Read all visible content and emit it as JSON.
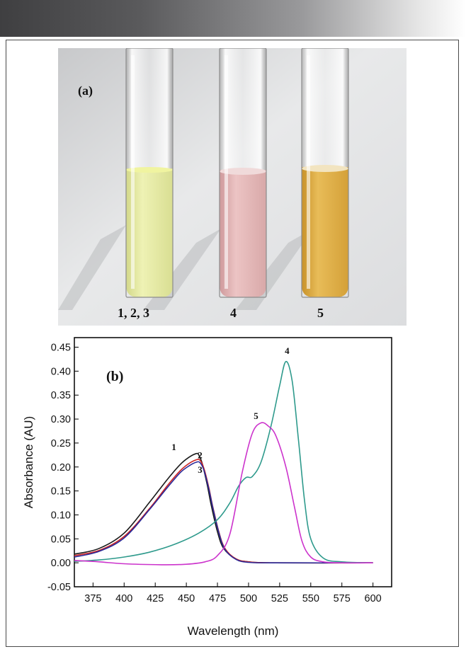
{
  "figure": {
    "photo_panel_label": "(a)",
    "tube_labels": [
      "1, 2, 3",
      "4",
      "5"
    ]
  },
  "colors": {
    "series_1": "#1a1a1a",
    "series_2": "#cc2222",
    "series_3": "#2a2a9a",
    "series_4": "#2e9a8c",
    "series_5": "#cc33cc",
    "tube_yellow": "#e6ec9e",
    "tube_pink": "#e6b3b3",
    "tube_amber": "#dcaa3c"
  },
  "chart_data": {
    "type": "line",
    "panel_label": "(b)",
    "xlabel": "Wavelength (nm)",
    "ylabel": "Absorbance (AU)",
    "xlim": [
      360,
      615
    ],
    "ylim": [
      -0.05,
      0.47
    ],
    "xticks": [
      "375",
      "400",
      "425",
      "450",
      "475",
      "500",
      "525",
      "550",
      "575",
      "600"
    ],
    "yticks": [
      "-0.05",
      "0.00",
      "0.05",
      "0.10",
      "0.15",
      "0.20",
      "0.25",
      "0.30",
      "0.35",
      "0.40",
      "0.45"
    ],
    "grid": false,
    "series": [
      {
        "name": "1",
        "color": "#1a1a1a",
        "x": [
          360,
          380,
          400,
          420,
          435,
          445,
          452,
          458,
          460,
          463,
          467,
          470,
          475,
          480,
          490,
          500,
          520,
          600
        ],
        "y": [
          0.018,
          0.03,
          0.062,
          0.125,
          0.175,
          0.205,
          0.22,
          0.228,
          0.225,
          0.205,
          0.16,
          0.12,
          0.065,
          0.03,
          0.008,
          0.002,
          0.0,
          0.0
        ]
      },
      {
        "name": "2",
        "color": "#cc2222",
        "x": [
          360,
          380,
          400,
          420,
          435,
          445,
          452,
          458,
          461,
          464,
          468,
          471,
          476,
          481,
          490,
          500,
          520,
          600
        ],
        "y": [
          0.015,
          0.026,
          0.055,
          0.112,
          0.162,
          0.192,
          0.207,
          0.215,
          0.214,
          0.198,
          0.158,
          0.12,
          0.066,
          0.03,
          0.008,
          0.002,
          0.0,
          0.0
        ]
      },
      {
        "name": "3",
        "color": "#2a2a9a",
        "x": [
          360,
          380,
          400,
          420,
          435,
          445,
          452,
          458,
          461,
          464,
          468,
          471,
          476,
          481,
          490,
          500,
          520,
          600
        ],
        "y": [
          0.012,
          0.024,
          0.052,
          0.11,
          0.158,
          0.188,
          0.202,
          0.21,
          0.209,
          0.194,
          0.155,
          0.118,
          0.064,
          0.028,
          0.007,
          0.001,
          0.0,
          0.0
        ]
      },
      {
        "name": "4",
        "color": "#2e9a8c",
        "x": [
          360,
          380,
          400,
          420,
          440,
          460,
          475,
          485,
          492,
          498,
          503,
          510,
          518,
          525,
          530,
          535,
          540,
          545,
          550,
          560,
          575,
          600
        ],
        "y": [
          0.003,
          0.006,
          0.012,
          0.022,
          0.038,
          0.062,
          0.09,
          0.125,
          0.16,
          0.178,
          0.18,
          0.21,
          0.285,
          0.37,
          0.42,
          0.38,
          0.26,
          0.13,
          0.05,
          0.01,
          0.002,
          0.0
        ]
      },
      {
        "name": "5",
        "color": "#cc33cc",
        "x": [
          360,
          380,
          400,
          430,
          450,
          465,
          475,
          485,
          495,
          503,
          510,
          516,
          522,
          530,
          537,
          543,
          550,
          560,
          575,
          600
        ],
        "y": [
          0.005,
          0.002,
          -0.002,
          -0.004,
          -0.003,
          0.002,
          0.015,
          0.06,
          0.19,
          0.27,
          0.292,
          0.285,
          0.265,
          0.2,
          0.115,
          0.045,
          0.012,
          0.002,
          0.0,
          0.0
        ]
      }
    ],
    "series_label_positions": [
      {
        "label": "1",
        "x": 440,
        "y": 0.235
      },
      {
        "label": "2",
        "x": 461,
        "y": 0.218
      },
      {
        "label": "3",
        "x": 461,
        "y": 0.188
      },
      {
        "label": "4",
        "x": 531,
        "y": 0.436
      },
      {
        "label": "5",
        "x": 506,
        "y": 0.3
      }
    ]
  }
}
